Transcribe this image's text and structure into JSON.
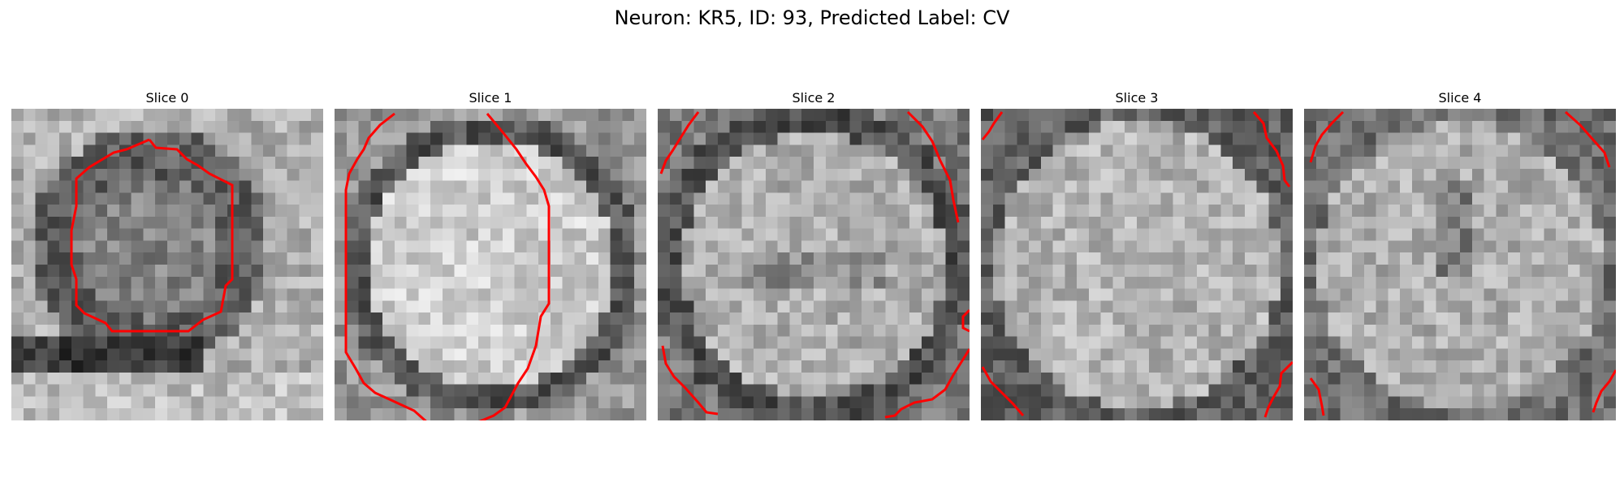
{
  "figure": {
    "title": "Neuron: KR5, ID: 93, Predicted Label: CV"
  },
  "panels": [
    {
      "title": "Slice 0"
    },
    {
      "title": "Slice 1"
    },
    {
      "title": "Slice 2"
    },
    {
      "title": "Slice 3"
    },
    {
      "title": "Slice 4"
    }
  ],
  "colors": {
    "contour": "#ff0000",
    "colormap": "gray"
  }
}
